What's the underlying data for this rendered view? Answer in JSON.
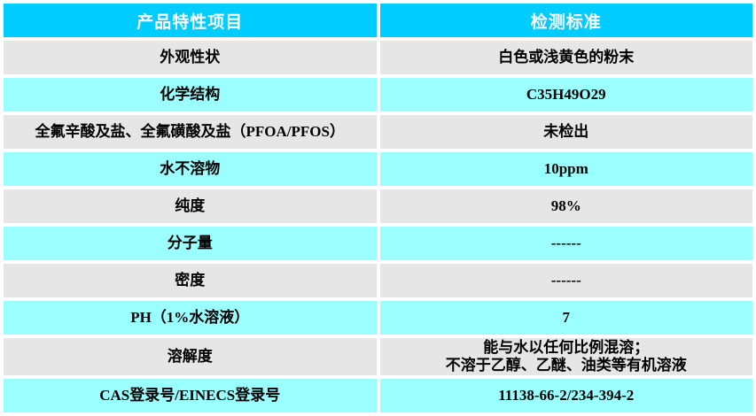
{
  "table": {
    "columns": [
      {
        "label": "产品特性项目"
      },
      {
        "label": "检测标准"
      }
    ],
    "rows": [
      {
        "property": "外观性状",
        "standard": "白色或浅黄色的粉末"
      },
      {
        "property": "化学结构",
        "standard": "C35H49O29"
      },
      {
        "property": "全氟辛酸及盐、全氟磺酸及盐（PFOA/PFOS）",
        "standard": "未检出"
      },
      {
        "property": "水不溶物",
        "standard": "10ppm"
      },
      {
        "property": "纯度",
        "standard": "98%"
      },
      {
        "property": "分子量",
        "standard": "------"
      },
      {
        "property": "密度",
        "standard": "------"
      },
      {
        "property": "PH（1%水溶液）",
        "standard": "7"
      },
      {
        "property": "溶解度",
        "standard": "能与水以任何比例混溶；\n不溶于乙醇、乙醚、油类等有机溶液"
      },
      {
        "property": "CAS登录号/EINECS登录号",
        "standard": "11138-66-2/234-394-2"
      }
    ],
    "colors": {
      "header_bg": "#00ccff",
      "header_text": "#ffffff",
      "row_gray": "#e6e6e6",
      "row_cyan": "#9bffff",
      "body_text": "#000000",
      "gap": "#ffffff"
    }
  }
}
